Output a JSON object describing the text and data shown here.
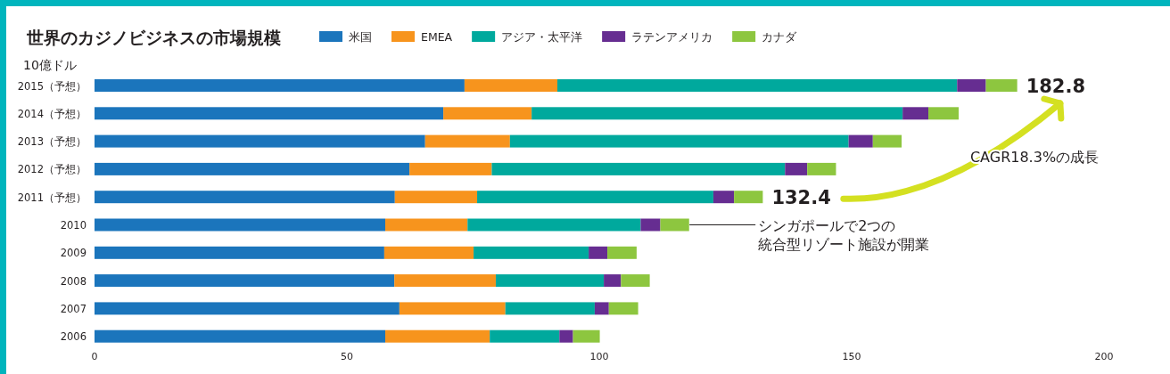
{
  "chart_data": {
    "type": "bar",
    "orientation": "horizontal",
    "stacked": true,
    "title": "世界のカジノビジネスの市場規模",
    "categories": [
      "2015（予想）",
      "2014（予想）",
      "2013（予想）",
      "2012（予想）",
      "2011（予想）",
      "2010",
      "2009",
      "2008",
      "2007",
      "2006"
    ],
    "series": [
      {
        "name": "米国",
        "color": "#1b75bc",
        "values": [
          73.3,
          69.1,
          65.5,
          62.4,
          59.5,
          57.6,
          57.4,
          59.4,
          60.4,
          57.6
        ]
      },
      {
        "name": "EMEA",
        "color": "#f7941d",
        "values": [
          18.4,
          17.5,
          16.8,
          16.3,
          16.3,
          16.3,
          17.7,
          20.1,
          21.0,
          20.7
        ]
      },
      {
        "name": "アジア・太平洋",
        "color": "#00a99d",
        "values": [
          79.2,
          73.5,
          67.1,
          58.1,
          46.8,
          34.3,
          22.8,
          21.4,
          17.7,
          13.8
        ]
      },
      {
        "name": "ラテンアメリカ",
        "color": "#662d91",
        "values": [
          5.7,
          5.1,
          4.8,
          4.4,
          4.1,
          3.9,
          3.7,
          3.4,
          2.8,
          2.7
        ]
      },
      {
        "name": "カナダ",
        "color": "#8dc63f",
        "values": [
          6.2,
          6.0,
          5.7,
          5.7,
          5.7,
          5.7,
          5.8,
          5.7,
          5.8,
          5.3
        ]
      }
    ],
    "totals": [
      "182.8",
      null,
      null,
      null,
      "132.4",
      null,
      null,
      null,
      null,
      null
    ],
    "xlim": [
      0,
      200
    ],
    "xticks": [
      0,
      50,
      100,
      150,
      200
    ],
    "grid": false,
    "legend": "top",
    "annotations": [
      "10億ドル",
      "CAGR18.3%の成長",
      {
        "text": "シンガポールで2つの統合型リゾート施設が開業",
        "x": 117.7,
        "y": "2010"
      }
    ]
  }
}
